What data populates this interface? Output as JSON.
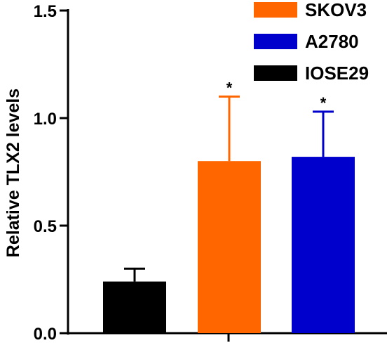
{
  "chart_data": {
    "type": "bar",
    "title": "",
    "xlabel": "",
    "ylabel": "Relative TLX2 levels",
    "ylim": [
      0,
      1.5
    ],
    "yticks": [
      0.0,
      0.5,
      1.0,
      1.5
    ],
    "ytick_labels": [
      "0.0",
      "0.5",
      "1.0",
      "1.5"
    ],
    "grid": false,
    "legend_position": "top-right",
    "series": [
      {
        "name": "IOSE29",
        "value": 0.24,
        "error": 0.06,
        "color": "#000000",
        "annotation": ""
      },
      {
        "name": "SKOV3",
        "value": 0.8,
        "error": 0.3,
        "color": "#ff6600",
        "annotation": "*"
      },
      {
        "name": "A2780",
        "value": 0.82,
        "error": 0.21,
        "color": "#0000cc",
        "annotation": "*"
      }
    ],
    "legend": [
      {
        "name": "SKOV3",
        "color": "#ff6600"
      },
      {
        "name": "A2780",
        "color": "#0000cc"
      },
      {
        "name": "IOSE29",
        "color": "#000000"
      }
    ]
  }
}
